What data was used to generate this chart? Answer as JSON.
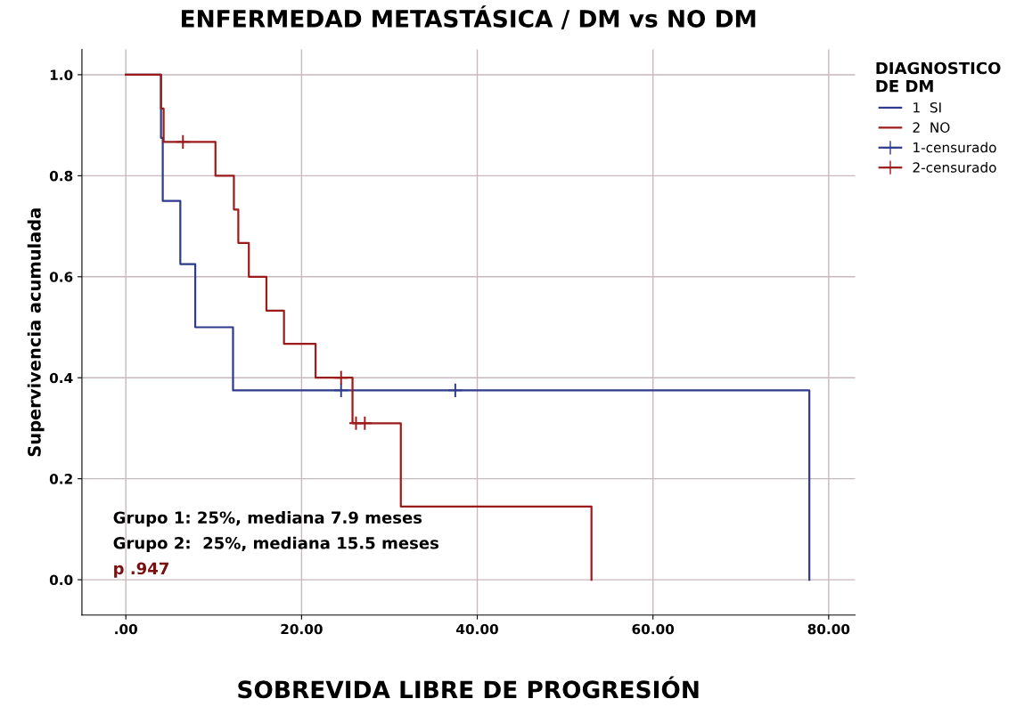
{
  "chart_data": {
    "type": "step",
    "title": "ENFERMEDAD METASTÁSICA / DM vs NO DM",
    "xlabel": "SOBREVIDA LIBRE DE PROGRESIÓN",
    "ylabel": "Supervivencia acumulada",
    "legend_title": "DIAGNOSTICO\nDE DM",
    "series": [
      {
        "name": "1  SI",
        "color": "#2e3a8c",
        "x": [
          0,
          4.0,
          4.2,
          6.2,
          7.9,
          12.2,
          77.8
        ],
        "values": [
          1.0,
          0.875,
          0.75,
          0.625,
          0.5,
          0.375,
          0.0
        ]
      },
      {
        "name": "2  NO",
        "color": "#9b1b1b",
        "x": [
          0,
          4.0,
          4.3,
          10.2,
          12.3,
          12.8,
          14.0,
          16.0,
          18.0,
          21.6,
          25.8,
          31.3,
          53.0
        ],
        "values": [
          1.0,
          0.933,
          0.867,
          0.8,
          0.733,
          0.667,
          0.6,
          0.533,
          0.467,
          0.4,
          0.31,
          0.145,
          0.0
        ]
      },
      {
        "name": "1-censurado",
        "type": "scatter",
        "marker": "cross",
        "color": "#2e3a8c",
        "x": [
          24.5,
          37.5
        ],
        "values": [
          0.375,
          0.375
        ]
      },
      {
        "name": "2-censurado",
        "type": "scatter",
        "marker": "cross",
        "color": "#9b1b1b",
        "x": [
          6.5,
          24.5,
          26.2,
          27.2
        ],
        "values": [
          0.867,
          0.4,
          0.31,
          0.31
        ]
      }
    ],
    "xlim": [
      -5,
      83
    ],
    "xticks": [
      {
        "value": 0,
        "label": ".00"
      },
      {
        "value": 20,
        "label": "20.00"
      },
      {
        "value": 40,
        "label": "40.00"
      },
      {
        "value": 60,
        "label": "60.00"
      },
      {
        "value": 80,
        "label": "80.00"
      }
    ],
    "ylim": [
      -0.07,
      1.05
    ],
    "yticks": [
      {
        "value": 0,
        "label": "0.0"
      },
      {
        "value": 0.2,
        "label": "0.2"
      },
      {
        "value": 0.4,
        "label": "0.4"
      },
      {
        "value": 0.6,
        "label": "0.6"
      },
      {
        "value": 0.8,
        "label": "0.8"
      },
      {
        "value": 1.0,
        "label": "1.0"
      }
    ],
    "grid": true,
    "legend": "top right",
    "annotations": [
      "Grupo 1: 25%, mediana 7.9 meses",
      "Grupo 2:  25%, mediana 15.5 meses",
      "p .947"
    ]
  }
}
